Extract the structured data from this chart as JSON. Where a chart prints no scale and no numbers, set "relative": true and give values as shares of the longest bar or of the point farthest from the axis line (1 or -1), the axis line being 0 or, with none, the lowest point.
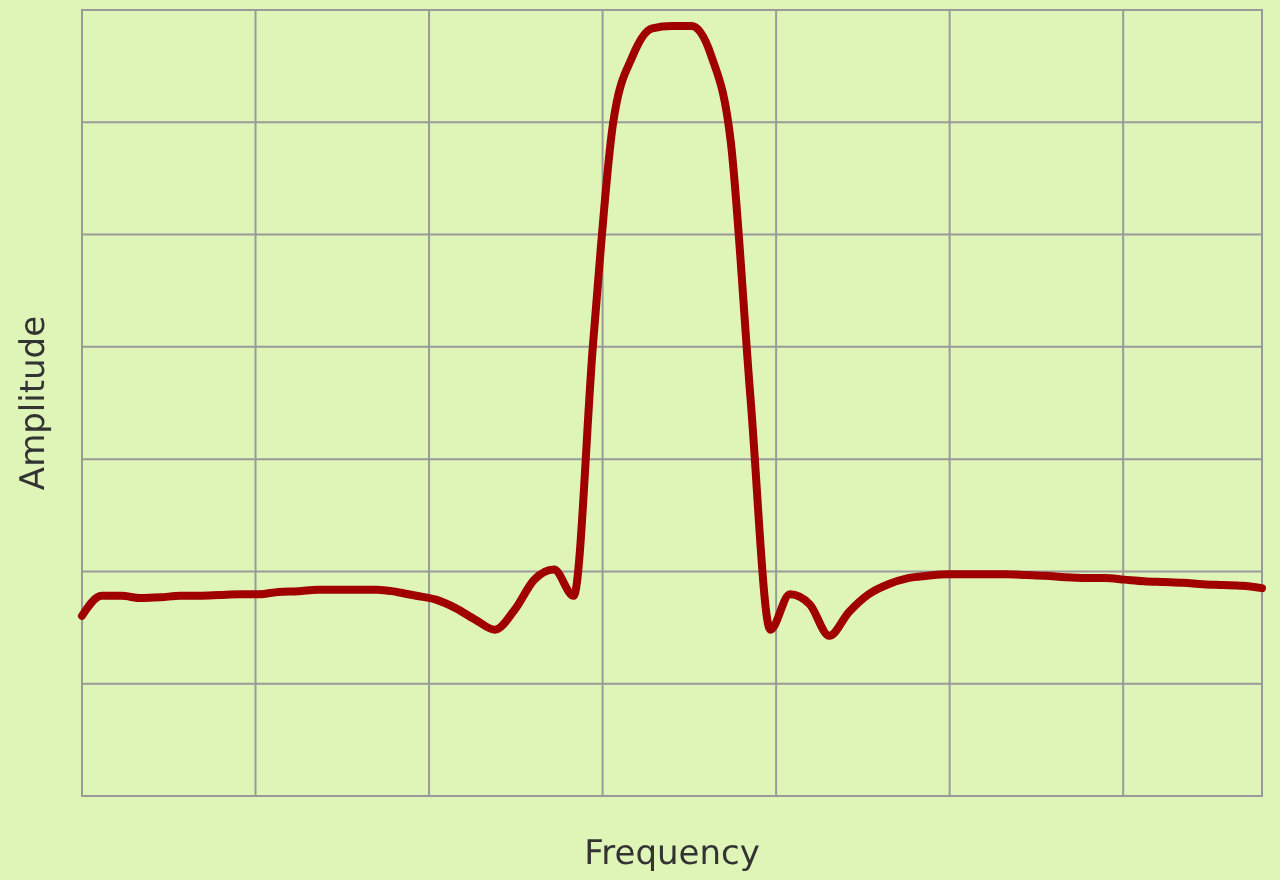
{
  "chart_data": {
    "type": "line",
    "relative": true,
    "xlabel": "Frequency",
    "ylabel": "Amplitude",
    "grid": true,
    "marker": "none",
    "line_style": "solid",
    "categories": [
      null,
      null,
      null,
      null,
      null,
      null,
      null,
      null,
      null,
      null,
      null,
      null,
      null,
      null,
      null,
      null,
      null,
      null,
      null,
      null,
      null,
      null,
      null,
      null,
      null,
      null,
      null,
      null,
      null,
      null,
      null,
      null,
      null,
      null,
      null,
      null,
      null,
      null,
      null,
      null,
      null,
      null,
      null,
      null,
      null,
      null,
      null,
      null,
      null,
      null,
      null,
      null,
      null,
      null,
      null,
      null,
      null,
      null,
      null,
      null,
      null
    ],
    "series": [
      {
        "color": "#a00000",
        "values": [
          0.234,
          0.26,
          0.26,
          0.257,
          0.258,
          0.26,
          0.26,
          0.261,
          0.262,
          0.262,
          0.265,
          0.266,
          0.268,
          0.268,
          0.268,
          0.268,
          0.265,
          0.26,
          0.255,
          0.244,
          0.229,
          0.216,
          0.242,
          0.281,
          0.294,
          0.26,
          0.592,
          0.873,
          0.961,
          0.997,
          1,
          1,
          0.961,
          0.847,
          0.514,
          0.216,
          0.262,
          0.249,
          0.208,
          0.239,
          0.262,
          0.275,
          0.283,
          0.286,
          0.288,
          0.288,
          0.288,
          0.288,
          0.287,
          0.286,
          0.284,
          0.283,
          0.283,
          0.281,
          0.279,
          0.278,
          0.277,
          0.275,
          0.274,
          0.273,
          0.27
        ]
      }
    ]
  }
}
